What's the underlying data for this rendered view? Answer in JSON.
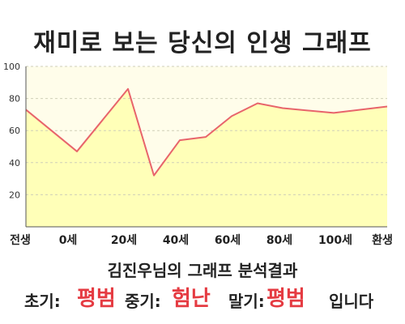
{
  "title": "재미로 보는 당신의 인생 그래프",
  "chart_data": {
    "type": "area",
    "x_tick_labels": [
      "전생",
      "0세",
      "20세",
      "40세",
      "60세",
      "80세",
      "100세",
      "환생"
    ],
    "x": [
      "전생",
      "0세",
      "~20세",
      "~30세",
      "~35세",
      "~45세",
      "~53세",
      "~66세",
      "~76세",
      "~100세",
      "환생"
    ],
    "values": [
      73,
      47,
      86,
      32,
      54,
      56,
      69,
      77,
      74,
      71,
      75
    ],
    "ylim": [
      0,
      100
    ],
    "y_ticks": [
      20,
      40,
      60,
      80,
      100
    ],
    "grid": true,
    "colors": {
      "fill": "#ffffb8",
      "line": "#e8646b",
      "plot_background": "#fffdea"
    }
  },
  "summary": "김진우님의 그래프 분석결과",
  "result": {
    "early_label": "초기:",
    "early_value": "평범",
    "mid_label": "중기:",
    "mid_value": "험난",
    "late_label": "말기:",
    "late_value": "평범",
    "ending": "입니다"
  }
}
